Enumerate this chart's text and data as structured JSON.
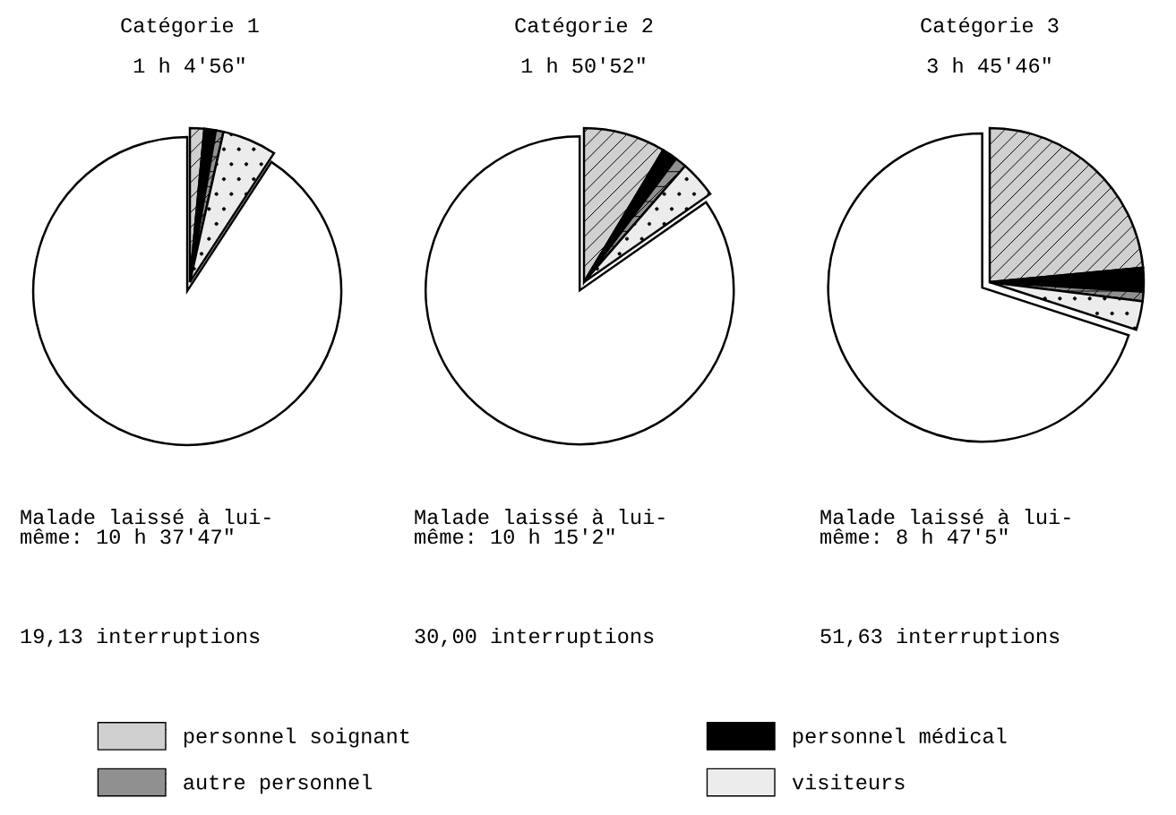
{
  "chart_data": [
    {
      "type": "pie",
      "title": "Catégorie 1",
      "subtitle": "1 h 4'56\"",
      "categories": [
        "personnel soignant",
        "personnel médical",
        "autre personnel",
        "visiteurs",
        null
      ],
      "values": [
        1.5,
        1.2,
        0.8,
        5.7,
        90.8
      ],
      "colors": [
        "#d0d0d0",
        "#000000",
        "#909090",
        "#ececec",
        "#ffffff"
      ],
      "annotations": [
        "Malade laissé à lui-\nmême: 10 h 37'47\"",
        "19,13 interruptions"
      ],
      "legend": "bottom"
    },
    {
      "type": "pie",
      "title": "Catégorie 2",
      "subtitle": "1 h 50'52\"",
      "categories": [
        null,
        null,
        null,
        null,
        null
      ],
      "values": [
        8.6,
        1.6,
        1.2,
        3.9,
        84.7
      ],
      "colors": [
        "#d0d0d0",
        "#000000",
        "#909090",
        "#ececec",
        "#ffffff"
      ],
      "annotations": [
        "Malade laissé à lui-\nmême: 10 h 15'2\"",
        "30,00 interruptions"
      ]
    },
    {
      "type": "pie",
      "title": "Catégorie 3",
      "subtitle": "3 h 45'46\"",
      "categories": [
        null,
        null,
        null,
        null,
        null
      ],
      "values": [
        23.5,
        2.5,
        1.0,
        3.0,
        70.0
      ],
      "colors": [
        "#d0d0d0",
        "#000000",
        "#909090",
        "#ececec",
        "#ffffff"
      ],
      "annotations": [
        "Malade laissé à lui-\nmême: 8 h 47'5\"",
        "51,63 interruptions"
      ]
    }
  ]
}
